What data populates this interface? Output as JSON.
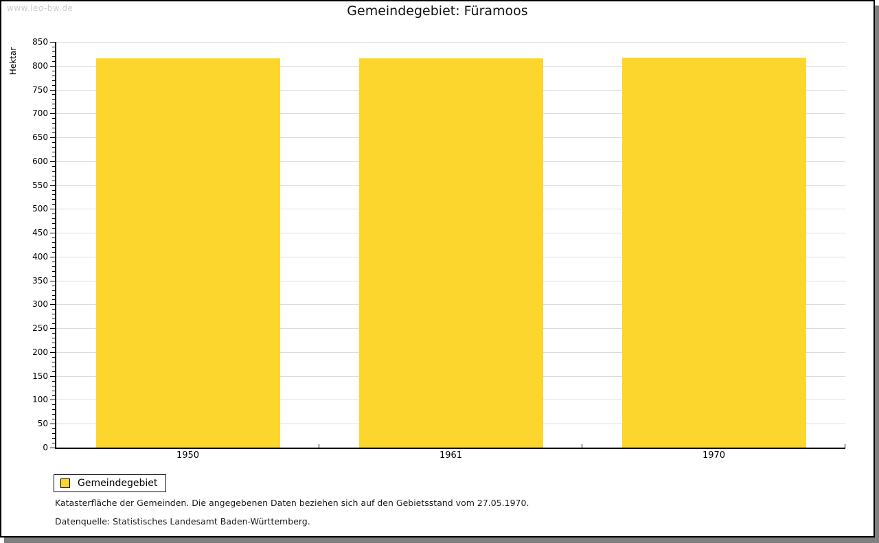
{
  "watermark": "www.leo-bw.de",
  "title": "Gemeindegebiet: Füramoos",
  "chart_data": {
    "type": "bar",
    "title": "Gemeindegebiet: Füramoos",
    "categories": [
      "1950",
      "1961",
      "1970"
    ],
    "series": [
      {
        "name": "Gemeindegebiet",
        "color": "#fcd62d",
        "values": [
          815,
          816,
          817
        ]
      }
    ],
    "xlabel": "",
    "ylabel": "Hektar",
    "ylim": [
      0,
      850
    ],
    "y_major_step": 50,
    "y_minor_step": 10,
    "grid": "horizontal-major",
    "legend_position": "bottom-left"
  },
  "legend": {
    "items": [
      {
        "label": "Gemeindegebiet",
        "color": "#fcd62d"
      }
    ]
  },
  "footnotes": [
    "Katasterfläche der Gemeinden. Die angegebenen Daten beziehen sich auf den Gebietsstand vom 27.05.1970.",
    "Datenquelle: Statistisches Landesamt Baden-Württemberg."
  ],
  "colors": {
    "bar": "#fcd62d",
    "grid": "#dcdcdc",
    "axis": "#000000",
    "watermark": "#cccccc",
    "frame_shadow": "#808080"
  }
}
